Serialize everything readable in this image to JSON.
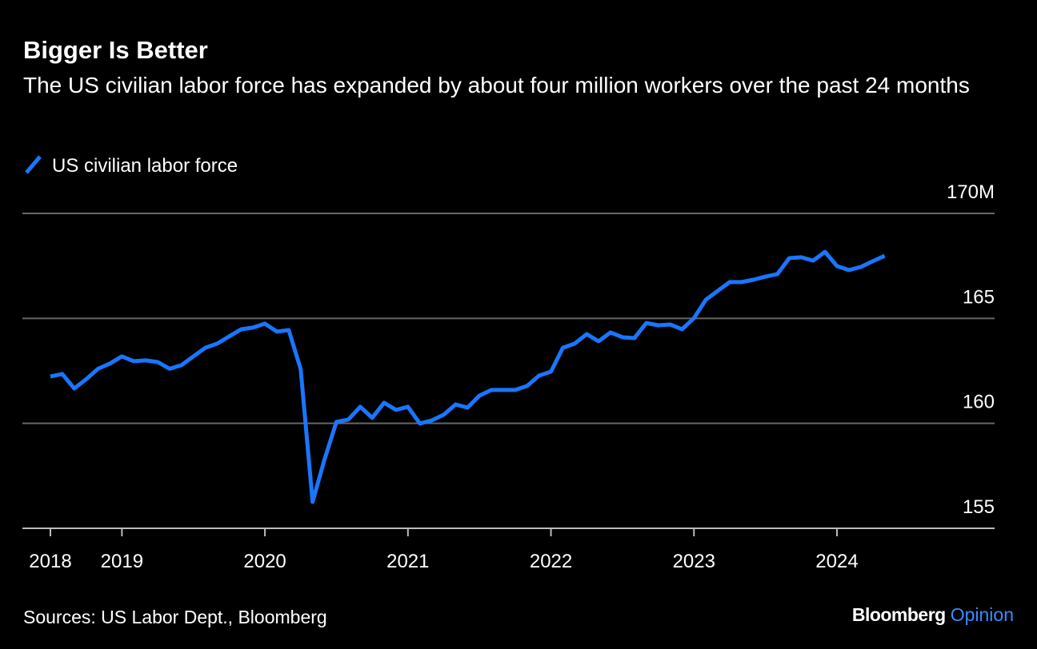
{
  "chart_data": {
    "type": "line",
    "title": "Bigger Is Better",
    "subtitle": "The US civilian labor force has expanded by about four million workers over the past 24 months",
    "source": "Sources: US Labor Dept., Bloomberg",
    "brand": {
      "name": "Bloomberg",
      "section": "Opinion"
    },
    "categories": [
      "2018",
      null,
      null,
      null,
      null,
      null,
      "2019",
      null,
      null,
      null,
      null,
      null,
      null,
      null,
      null,
      null,
      null,
      null,
      "2020",
      null,
      null,
      null,
      null,
      null,
      null,
      null,
      null,
      null,
      null,
      null,
      "2021",
      null,
      null,
      null,
      null,
      null,
      null,
      null,
      null,
      null,
      null,
      null,
      "2022",
      null,
      null,
      null,
      null,
      null,
      null,
      null,
      null,
      null,
      null,
      null,
      "2023",
      null,
      null,
      null,
      null,
      null,
      null,
      null,
      null,
      null,
      null,
      null,
      "2024",
      null,
      null,
      null,
      null
    ],
    "series": [
      {
        "name": "US civilian labor force",
        "color": "#1976ff",
        "values": [
          162.23,
          162.35,
          161.66,
          162.1,
          162.6,
          162.85,
          163.19,
          162.96,
          163.0,
          162.92,
          162.6,
          162.77,
          163.19,
          163.6,
          163.8,
          164.14,
          164.48,
          164.56,
          164.75,
          164.37,
          164.44,
          162.58,
          156.26,
          158.28,
          160.07,
          160.18,
          160.79,
          160.26,
          160.98,
          160.64,
          160.79,
          159.99,
          160.14,
          160.41,
          160.9,
          160.75,
          161.32,
          161.59,
          161.59,
          161.59,
          161.78,
          162.27,
          162.46,
          163.6,
          163.8,
          164.25,
          163.91,
          164.33,
          164.1,
          164.06,
          164.78,
          164.67,
          164.71,
          164.48,
          165.01,
          165.89,
          166.31,
          166.73,
          166.73,
          166.84,
          166.99,
          167.11,
          167.87,
          167.91,
          167.75,
          168.17,
          167.49,
          167.3,
          167.45,
          167.72,
          167.98
        ]
      }
    ],
    "ylim": [
      155,
      170
    ],
    "yticks": [
      155,
      160,
      165,
      {
        "value": 170,
        "label": "170M"
      }
    ],
    "grid": true
  }
}
